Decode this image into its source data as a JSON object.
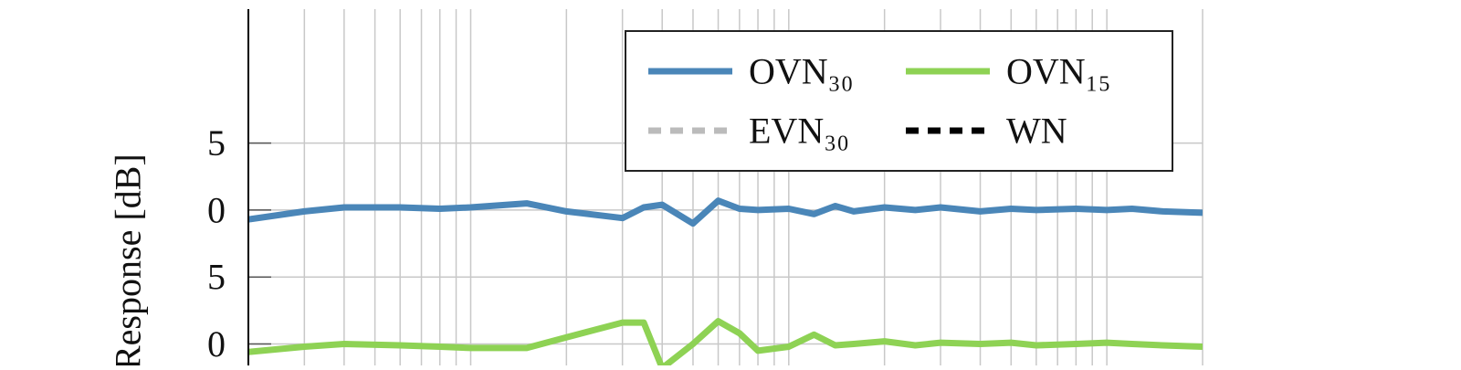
{
  "chart_data": {
    "type": "line",
    "ylabel": "Response [dB]",
    "log_x": true,
    "grid": true,
    "x": [
      20,
      30,
      40,
      60,
      80,
      100,
      150,
      200,
      300,
      350,
      400,
      500,
      600,
      700,
      800,
      1000,
      1200,
      1400,
      1600,
      2000,
      2500,
      3000,
      4000,
      5000,
      6000,
      8000,
      10000,
      12000,
      15000,
      20000
    ],
    "xlim": [
      20,
      20000
    ],
    "xgrid": [
      20,
      30,
      40,
      50,
      60,
      70,
      80,
      90,
      100,
      200,
      300,
      400,
      500,
      600,
      700,
      800,
      900,
      1000,
      2000,
      3000,
      4000,
      5000,
      6000,
      7000,
      8000,
      9000,
      10000,
      20000
    ],
    "ylim": [
      -11.6,
      15
    ],
    "yticks": [
      5,
      0,
      {
        "value": -5,
        "label": "5"
      },
      {
        "value": -10,
        "label": "0"
      }
    ],
    "series": [
      {
        "name": "OVN₃₀",
        "color": "#4a86b8",
        "dash": "solid",
        "values": [
          -0.7,
          -0.1,
          0.2,
          0.2,
          0.1,
          0.2,
          0.5,
          -0.1,
          -0.6,
          0.2,
          0.4,
          -1.0,
          0.7,
          0.1,
          0,
          0.1,
          -0.3,
          0.3,
          -0.1,
          0.2,
          0,
          0.2,
          -0.1,
          0.1,
          0,
          0.1,
          0,
          0.1,
          -0.1,
          -0.2
        ]
      },
      {
        "name": "OVN₁₅",
        "color": "#8ed254",
        "dash": "solid",
        "values": [
          -10.6,
          -10.2,
          -10,
          -10.1,
          -10.2,
          -10.3,
          -10.3,
          -9.5,
          -8.4,
          -8.4,
          -11.8,
          -10,
          -8.3,
          -9.2,
          -10.5,
          -10.2,
          -9.3,
          -10.1,
          -10,
          -9.8,
          -10.1,
          -9.9,
          -10,
          -9.9,
          -10.1,
          -10,
          -9.9,
          -10,
          -10.1,
          -10.2
        ]
      },
      {
        "name": "EVN₃₀",
        "color": "#bbbbbb",
        "dash": "dashed",
        "values": [
          null,
          null,
          null,
          null,
          null,
          null,
          null,
          null,
          null,
          null,
          null,
          null,
          null,
          null,
          null,
          null,
          null,
          null,
          null,
          null,
          null,
          null,
          null,
          null,
          null,
          null,
          null,
          null,
          null,
          null
        ]
      },
      {
        "name": "WN",
        "color": "#000000",
        "dash": "dashed",
        "values": [
          null,
          null,
          null,
          null,
          null,
          null,
          null,
          null,
          null,
          null,
          null,
          null,
          null,
          null,
          null,
          null,
          null,
          null,
          null,
          null,
          null,
          null,
          null,
          null,
          null,
          null,
          null,
          null,
          null,
          null
        ]
      }
    ]
  }
}
